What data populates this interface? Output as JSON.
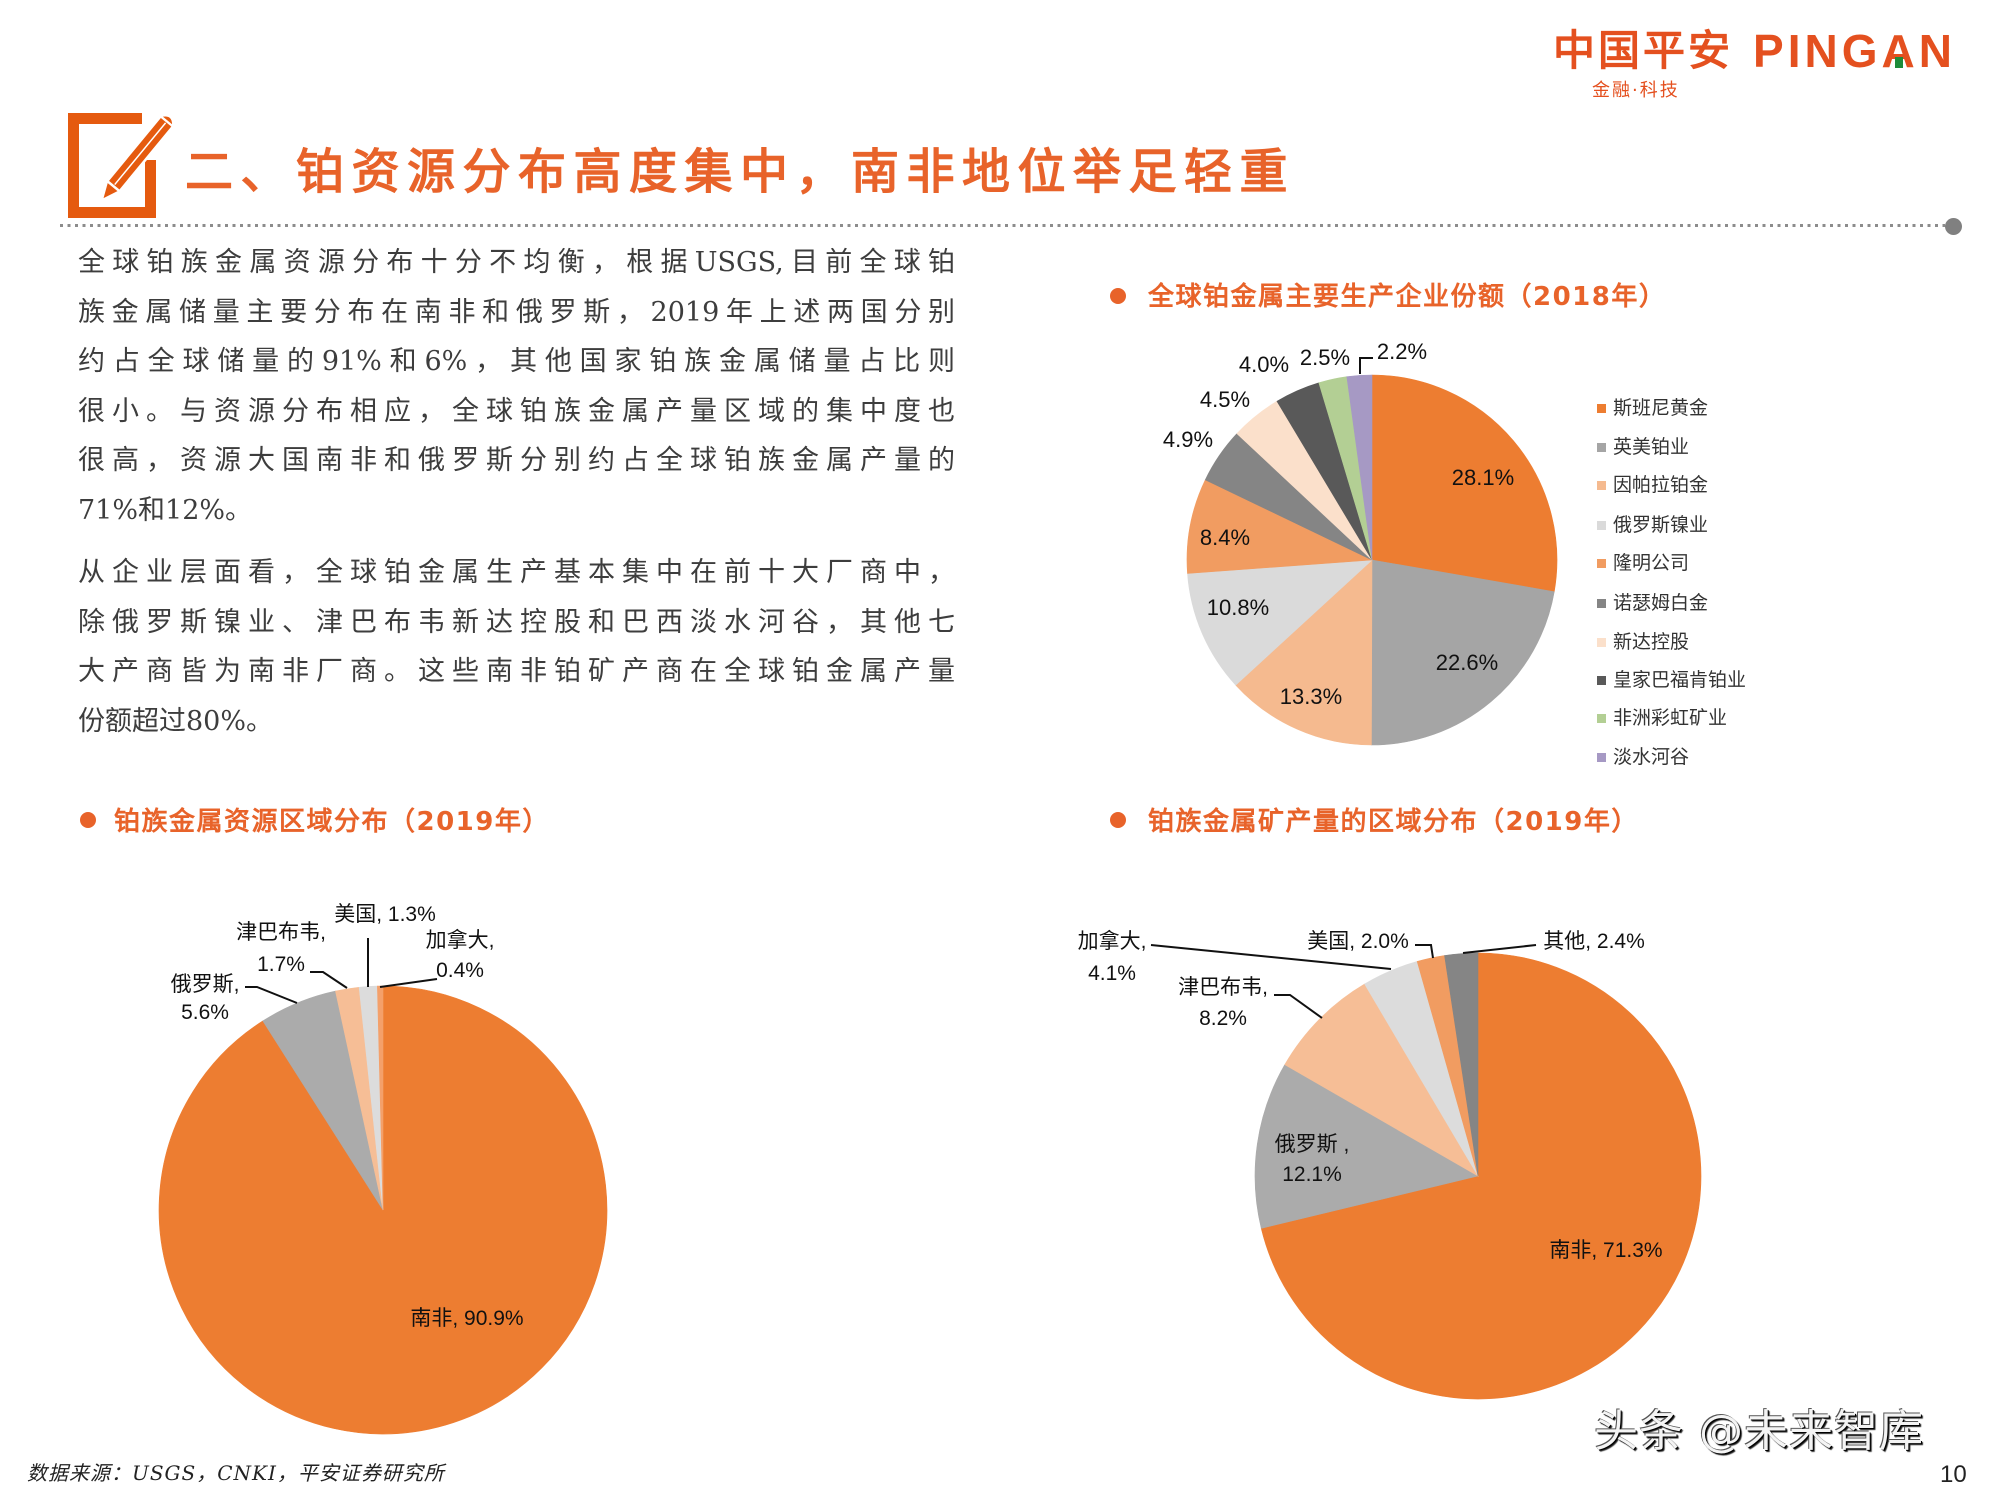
{
  "colors": {
    "logo": "#E4501F",
    "logo_green": "#1E8C3A",
    "accent": "#E8632A",
    "icon": "#E55A0F",
    "divider": "#808080",
    "body_text": "#3D3D3D"
  },
  "header": {
    "logo": {
      "cn": "中国平安",
      "en": "PINGAN",
      "tagline": "金融·科技"
    },
    "section_title": "二、铂资源分布高度集中，南非地位举足轻重",
    "section_icon": "pencil-square-icon"
  },
  "body": {
    "paragraphs": [
      {
        "lines": [
          "全球铂族金属资源分布十分不均衡，根据USGS,目前全球铂",
          "族金属储量主要分布在南非和俄罗斯，2019年上述两国分别",
          "约占全球储量的91%和6%，其他国家铂族金属储量占比则",
          "很小。与资源分布相应，全球铂族金属产量区域的集中度也",
          "很高，资源大国南非和俄罗斯分别约占全球铂族金属产量的",
          "71%和12%。"
        ]
      },
      {
        "lines": [
          "从企业层面看，全球铂金属生产基本集中在前十大厂商中，",
          "除俄罗斯镍业、津巴布韦新达控股和巴西淡水河谷，其他七",
          "大产商皆为南非厂商。这些南非铂矿产商在全球铂金属产量",
          "份额超过80%。"
        ]
      }
    ]
  },
  "footer": {
    "source": "数据来源：USGS，CNKI，平安证券研究所",
    "watermark": "头条 @未来智库",
    "page_number": "10"
  },
  "chart_data": [
    {
      "type": "pie",
      "title": "全球铂金属主要生产企业份额（2018年）",
      "categories": [
        "斯班尼黄金",
        "英美铂业",
        "因帕拉铂金",
        "俄罗斯镍业",
        "隆明公司",
        "诺瑟姆白金",
        "新达控股",
        "皇家巴福肯铂业",
        "非洲彩虹矿业",
        "淡水河谷"
      ],
      "values": [
        28.1,
        22.6,
        13.3,
        10.8,
        8.4,
        4.9,
        4.5,
        4.0,
        2.5,
        2.2
      ],
      "labels": [
        "28.1%",
        "22.6%",
        "13.3%",
        "10.8%",
        "8.4%",
        "4.9%",
        "4.5%",
        "4.0%",
        "2.5%",
        "2.2%"
      ],
      "colors": [
        "#ED7D31",
        "#A5A5A5",
        "#F5BA8F",
        "#DADADA",
        "#F19C61",
        "#858585",
        "#FBE0CB",
        "#595959",
        "#B3CF94",
        "#A699C4"
      ],
      "unit": "%",
      "start": "12 o'clock",
      "direction": "clockwise",
      "legend_position": "right"
    },
    {
      "type": "pie",
      "title": "铂族金属资源区域分布（2019年）",
      "categories": [
        "南非",
        "俄罗斯",
        "津巴布韦",
        "美国",
        "加拿大"
      ],
      "values": [
        90.9,
        5.6,
        1.7,
        1.3,
        0.4
      ],
      "label_lines": [
        [
          "南非, 90.9%"
        ],
        [
          "俄罗斯,",
          "5.6%"
        ],
        [
          "津巴布韦,",
          "1.7%"
        ],
        [
          "美国, 1.3%"
        ],
        [
          "加拿大,",
          "0.4%"
        ]
      ],
      "colors": [
        "#ED7D31",
        "#ABABAB",
        "#F6BE96",
        "#DCDCDC",
        "#F4A06A"
      ],
      "unit": "%",
      "start": "12 o'clock",
      "direction": "clockwise",
      "legend_position": "none (data labels with leader lines)"
    },
    {
      "type": "pie",
      "title": "铂族金属矿产量的区域分布（2019年）",
      "categories": [
        "南非",
        "俄罗斯",
        "津巴布韦",
        "加拿大",
        "美国",
        "其他"
      ],
      "values": [
        71.3,
        12.1,
        8.2,
        4.1,
        2.0,
        2.4
      ],
      "label_lines": [
        [
          "南非, 71.3%"
        ],
        [
          "俄罗斯 ,",
          "12.1%"
        ],
        [
          "津巴布韦,",
          "8.2%"
        ],
        [
          "加拿大,",
          "4.1%"
        ],
        [
          "美国, 2.0%"
        ],
        [
          "其他, 2.4%"
        ]
      ],
      "colors": [
        "#ED7D31",
        "#ABABAB",
        "#F6BE96",
        "#DCDCDC",
        "#F19C61",
        "#858585"
      ],
      "unit": "%",
      "start": "12 o'clock",
      "direction": "clockwise",
      "legend_position": "none (data labels with leader lines)"
    }
  ]
}
